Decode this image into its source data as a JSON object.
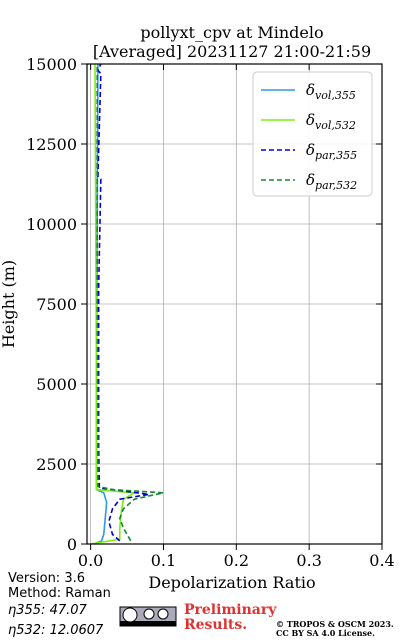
{
  "chart_data": {
    "type": "line",
    "title": "pollyxt_cpv at Mindelo",
    "subtitle": "[Averaged] 20231127 21:00-21:59",
    "x_label": "Depolarization Ratio",
    "y_label": "Height (m)",
    "xlim": [
      -0.005,
      0.4
    ],
    "ylim": [
      0,
      15000
    ],
    "xticks": [
      {
        "value": 0,
        "label": "0.0"
      },
      0.1,
      0.2,
      0.3,
      0.4
    ],
    "yticks": [
      0,
      2500,
      5000,
      7500,
      10000,
      12500,
      15000
    ],
    "grid": true,
    "legend": "upper right",
    "series": [
      {
        "name": "δvol,355",
        "color": "#2e9be0",
        "dash": false,
        "values": [
          0.005,
          0.015,
          0.018,
          0.02,
          0.022,
          0.018,
          0.008,
          0.008,
          0.008,
          0.009,
          0.01
        ],
        "y": [
          0,
          100,
          300,
          800,
          1300,
          1600,
          1700,
          3000,
          6000,
          10000,
          15000
        ]
      },
      {
        "name": "δvol,532",
        "color": "#80ee10",
        "dash": false,
        "values": [
          0.0,
          0.04,
          0.04,
          0.042,
          0.045,
          0.06,
          0.008,
          0.008,
          0.007,
          0.006
        ],
        "y": [
          0,
          150,
          500,
          1000,
          1400,
          1600,
          1700,
          5000,
          10000,
          15000
        ]
      },
      {
        "name": "δpar,355",
        "color": "#0000cc",
        "dash": true,
        "values": [
          0.04,
          0.03,
          0.025,
          0.03,
          0.04,
          0.08,
          0.03,
          0.012,
          0.011,
          0.011,
          0.014,
          0.01,
          0.014,
          0.01,
          0.014
        ],
        "y": [
          100,
          300,
          700,
          1100,
          1400,
          1550,
          1700,
          1750,
          3000,
          8000,
          11400,
          11500,
          14700,
          14800,
          15000
        ]
      },
      {
        "name": "δpar,532",
        "color": "#118833",
        "dash": true,
        "values": [
          0.055,
          0.05,
          0.045,
          0.04,
          0.045,
          0.06,
          0.1,
          0.03,
          0.01,
          0.009,
          0.009
        ],
        "y": [
          100,
          300,
          500,
          800,
          1100,
          1400,
          1600,
          1700,
          1800,
          8000,
          15000
        ]
      }
    ]
  },
  "info": {
    "version": "Version: 3.6",
    "method": "Method: Raman",
    "eta355": "η355:  47.07",
    "eta532": "η532: 12.0607",
    "preliminary_1": "Preliminary",
    "preliminary_2": "Results.",
    "copyright": "© TROPOS & OSCM 2023.",
    "license": "CC BY SA 4.0 License."
  }
}
